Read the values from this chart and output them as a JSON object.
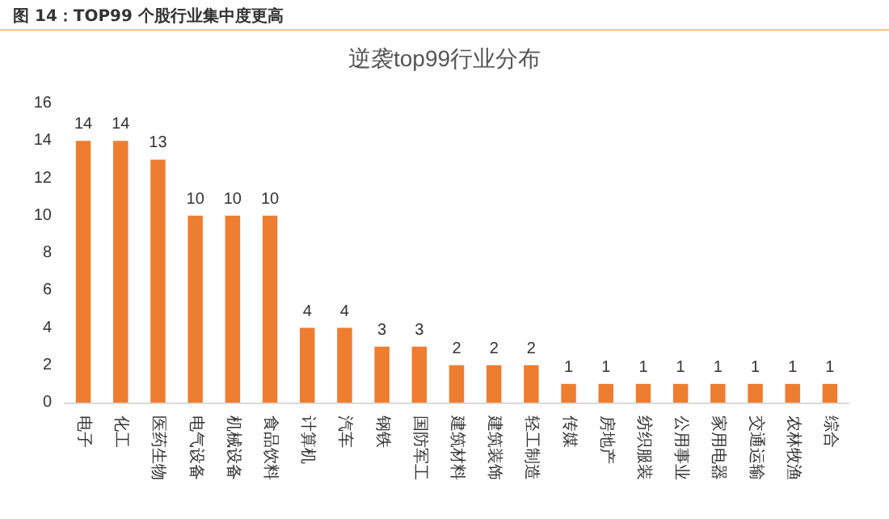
{
  "chart_data": {
    "type": "bar",
    "title": "逆袭top99行业分布",
    "annotations": [
      "图 14：TOP99 个股行业集中度更高"
    ],
    "categories": [
      "电子",
      "化工",
      "医药生物",
      "电气设备",
      "机械设备",
      "食品饮料",
      "计算机",
      "汽车",
      "钢铁",
      "国防军工",
      "建筑材料",
      "建筑装饰",
      "轻工制造",
      "传媒",
      "房地产",
      "纺织服装",
      "公用事业",
      "家用电器",
      "交通运输",
      "农林牧渔",
      "综合"
    ],
    "values": [
      14,
      14,
      13,
      10,
      10,
      10,
      4,
      4,
      3,
      3,
      2,
      2,
      2,
      1,
      1,
      1,
      1,
      1,
      1,
      1,
      1
    ],
    "color": "#ed7d31",
    "ylim": [
      0,
      16
    ],
    "yticks": [
      0,
      2,
      4,
      6,
      8,
      10,
      12,
      14,
      16
    ],
    "grid": false,
    "data_labels": true
  }
}
